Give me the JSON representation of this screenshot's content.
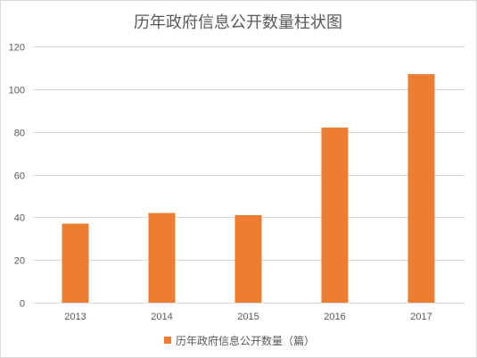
{
  "chart_data": {
    "type": "bar",
    "title": "历年政府信息公开数量柱状图",
    "categories": [
      "2013",
      "2014",
      "2015",
      "2016",
      "2017"
    ],
    "series": [
      {
        "name": "历年政府信息公开数量（篇）",
        "values": [
          37,
          42,
          41,
          82,
          107
        ],
        "color": "#ed7d31"
      }
    ],
    "ylim": [
      0,
      120
    ],
    "yticks": [
      0,
      20,
      40,
      60,
      80,
      100,
      120
    ],
    "grid": true,
    "legend": "bottom"
  },
  "colors": {
    "bar": "#ed7d31",
    "grid": "#d9d9d9",
    "text": "#595959"
  }
}
